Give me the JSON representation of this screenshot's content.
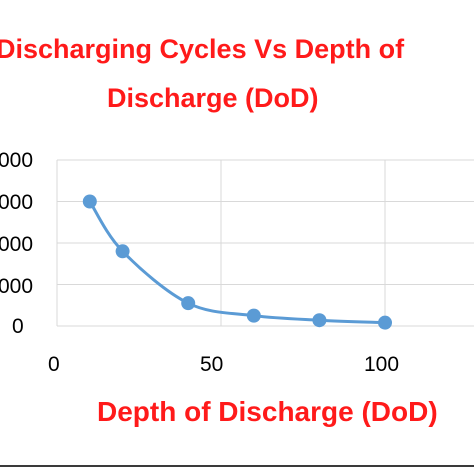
{
  "chart_data": {
    "type": "line",
    "title_lines": [
      "Discharging Cycles Vs Depth of",
      "Discharge (DoD)"
    ],
    "xlabel": "Depth of Discharge (DoD)",
    "ylabel": "",
    "x_ticks": [
      "0",
      "50",
      "100"
    ],
    "y_ticks": [
      "0",
      "000",
      "000",
      "000",
      "000"
    ],
    "xlim": [
      0,
      100
    ],
    "ylim": [
      0,
      4
    ],
    "grid": true,
    "series": [
      {
        "color": "#5b9bd5",
        "x": [
          10,
          20,
          40,
          60,
          80,
          100
        ],
        "y": [
          3.0,
          1.8,
          0.55,
          0.25,
          0.14,
          0.08
        ]
      }
    ]
  }
}
